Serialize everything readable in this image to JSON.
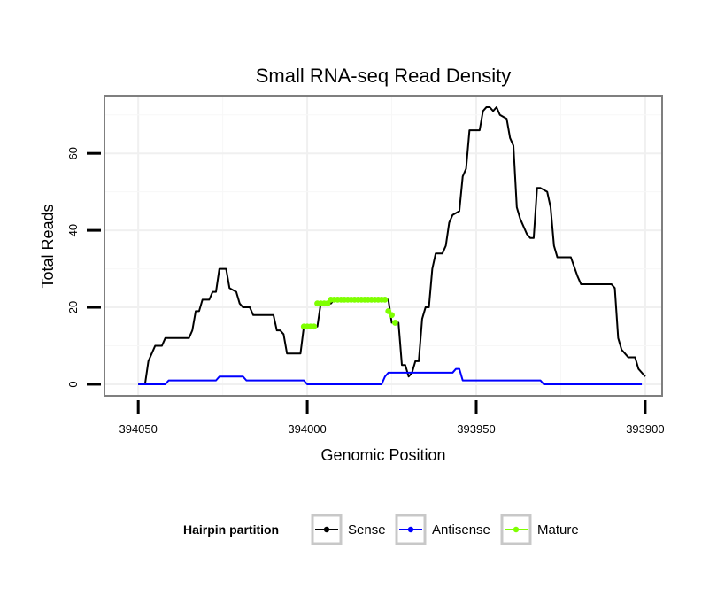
{
  "chart_data": {
    "type": "line",
    "title": "Small RNA-seq Read Density",
    "xlabel": "Genomic Position",
    "ylabel": "Total Reads",
    "xlim": [
      394060,
      393895
    ],
    "ylim": [
      -3,
      75
    ],
    "x_ticks": [
      394050,
      394000,
      393950,
      393900
    ],
    "x_tick_labels": [
      "394050",
      "394000",
      "393950",
      "393900"
    ],
    "y_ticks": [
      0,
      20,
      40,
      60
    ],
    "y_tick_labels": [
      "0",
      "20",
      "40",
      "60"
    ],
    "legend": {
      "title": "Hairpin partition",
      "position": "bottom",
      "entries": [
        "Sense",
        "Antisense",
        "Mature"
      ]
    },
    "series": [
      {
        "name": "Sense",
        "color": "#000000",
        "style": "line",
        "points": [
          [
            394050,
            0
          ],
          [
            394049,
            0
          ],
          [
            394048,
            0
          ],
          [
            394047,
            6
          ],
          [
            394046,
            8
          ],
          [
            394045,
            10
          ],
          [
            394043,
            10
          ],
          [
            394042,
            12
          ],
          [
            394035,
            12
          ],
          [
            394034,
            14
          ],
          [
            394033,
            19
          ],
          [
            394032,
            19
          ],
          [
            394031,
            22
          ],
          [
            394029,
            22
          ],
          [
            394028,
            24
          ],
          [
            394027,
            24
          ],
          [
            394026,
            30
          ],
          [
            394024,
            30
          ],
          [
            394023,
            25
          ],
          [
            394021,
            24
          ],
          [
            394020,
            21
          ],
          [
            394019,
            20
          ],
          [
            394017,
            20
          ],
          [
            394016,
            18
          ],
          [
            394010,
            18
          ],
          [
            394009,
            14
          ],
          [
            394008,
            14
          ],
          [
            394007,
            13
          ],
          [
            394006,
            8
          ],
          [
            394002,
            8
          ],
          [
            394001,
            15
          ],
          [
            393997,
            15
          ],
          [
            393996,
            21
          ],
          [
            393993,
            21
          ],
          [
            393992,
            22
          ],
          [
            393976,
            22
          ],
          [
            393975,
            16
          ],
          [
            393973,
            16
          ],
          [
            393972,
            5
          ],
          [
            393971,
            5
          ],
          [
            393970,
            2
          ],
          [
            393969,
            3
          ],
          [
            393968,
            6
          ],
          [
            393967,
            6
          ],
          [
            393966,
            17
          ],
          [
            393965,
            20
          ],
          [
            393964,
            20
          ],
          [
            393963,
            30
          ],
          [
            393962,
            34
          ],
          [
            393960,
            34
          ],
          [
            393959,
            36
          ],
          [
            393958,
            42
          ],
          [
            393957,
            44
          ],
          [
            393955,
            45
          ],
          [
            393954,
            54
          ],
          [
            393953,
            56
          ],
          [
            393952,
            66
          ],
          [
            393949,
            66
          ],
          [
            393948,
            71
          ],
          [
            393947,
            72
          ],
          [
            393946,
            72
          ],
          [
            393945,
            71
          ],
          [
            393944,
            72
          ],
          [
            393943,
            70
          ],
          [
            393941,
            69
          ],
          [
            393940,
            64
          ],
          [
            393939,
            62
          ],
          [
            393938,
            46
          ],
          [
            393937,
            43
          ],
          [
            393936,
            41
          ],
          [
            393935,
            39
          ],
          [
            393934,
            38
          ],
          [
            393933,
            38
          ],
          [
            393932,
            51
          ],
          [
            393931,
            51
          ],
          [
            393929,
            50
          ],
          [
            393928,
            46
          ],
          [
            393927,
            36
          ],
          [
            393926,
            33
          ],
          [
            393922,
            33
          ],
          [
            393920,
            28
          ],
          [
            393919,
            26
          ],
          [
            393910,
            26
          ],
          [
            393909,
            25
          ],
          [
            393908,
            12
          ],
          [
            393907,
            9
          ],
          [
            393906,
            8
          ],
          [
            393905,
            7
          ],
          [
            393903,
            7
          ],
          [
            393902,
            4
          ],
          [
            393900,
            2
          ]
        ]
      },
      {
        "name": "Antisense",
        "color": "#0000ff",
        "style": "line",
        "points": [
          [
            394050,
            0
          ],
          [
            394042,
            0
          ],
          [
            394041,
            1
          ],
          [
            394027,
            1
          ],
          [
            394026,
            2
          ],
          [
            394019,
            2
          ],
          [
            394018,
            1
          ],
          [
            394001,
            1
          ],
          [
            394000,
            0
          ],
          [
            393978,
            0
          ],
          [
            393977,
            2
          ],
          [
            393976,
            3
          ],
          [
            393957,
            3
          ],
          [
            393956,
            4
          ],
          [
            393955,
            4
          ],
          [
            393954,
            1
          ],
          [
            393931,
            1
          ],
          [
            393930,
            0
          ],
          [
            393901,
            0
          ]
        ]
      },
      {
        "name": "Mature",
        "color": "#7fff00",
        "style": "points",
        "points": [
          [
            394001,
            15
          ],
          [
            394000,
            15
          ],
          [
            393999,
            15
          ],
          [
            393998,
            15
          ],
          [
            393997,
            21
          ],
          [
            393996,
            21
          ],
          [
            393995,
            21
          ],
          [
            393994,
            21
          ],
          [
            393993,
            22
          ],
          [
            393992,
            22
          ],
          [
            393991,
            22
          ],
          [
            393990,
            22
          ],
          [
            393989,
            22
          ],
          [
            393988,
            22
          ],
          [
            393987,
            22
          ],
          [
            393986,
            22
          ],
          [
            393985,
            22
          ],
          [
            393984,
            22
          ],
          [
            393983,
            22
          ],
          [
            393982,
            22
          ],
          [
            393981,
            22
          ],
          [
            393980,
            22
          ],
          [
            393979,
            22
          ],
          [
            393978,
            22
          ],
          [
            393977,
            22
          ],
          [
            393976,
            19
          ],
          [
            393975,
            18
          ],
          [
            393974,
            16
          ]
        ]
      }
    ]
  }
}
